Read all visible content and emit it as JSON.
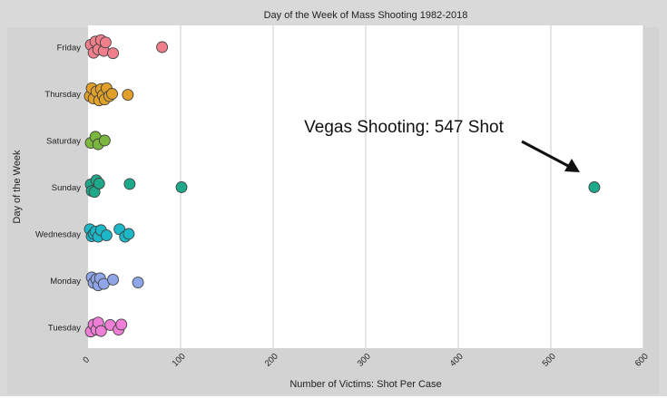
{
  "chart_data": {
    "type": "scatter",
    "title": "Day of the Week of Mass Shooting 1982-2018",
    "xlabel": "Number of Victims: Shot Per Case",
    "ylabel": "Day of the Week",
    "xlim": [
      0,
      600
    ],
    "x_ticks": [
      0,
      100,
      200,
      300,
      400,
      500,
      600
    ],
    "categories": [
      "Friday",
      "Thursday",
      "Saturday",
      "Sunday",
      "Wednesday",
      "Monday",
      "Tuesday"
    ],
    "grid": "vertical",
    "series": [
      {
        "category": "Friday",
        "color": "#f07f8b",
        "points": [
          [
            3,
            -0.05
          ],
          [
            6,
            0.12
          ],
          [
            8,
            -0.12
          ],
          [
            11,
            0.05
          ],
          [
            14,
            -0.15
          ],
          [
            17,
            0.08
          ],
          [
            19,
            -0.1
          ],
          [
            27,
            0.13
          ],
          [
            80,
            0.0
          ]
        ]
      },
      {
        "category": "Thursday",
        "color": "#e0a02a",
        "points": [
          [
            2,
            0.05
          ],
          [
            4,
            -0.12
          ],
          [
            6,
            0.1
          ],
          [
            9,
            -0.05
          ],
          [
            12,
            0.14
          ],
          [
            14,
            -0.1
          ],
          [
            16,
            0.03
          ],
          [
            18,
            0.12
          ],
          [
            20,
            -0.12
          ],
          [
            23,
            0.05
          ],
          [
            26,
            0.0
          ],
          [
            43,
            0.02
          ]
        ]
      },
      {
        "category": "Saturday",
        "color": "#7bb63f",
        "points": [
          [
            3,
            0.05
          ],
          [
            8,
            -0.08
          ],
          [
            11,
            0.08
          ],
          [
            18,
            0.0
          ]
        ]
      },
      {
        "category": "Sunday",
        "color": "#1fa98b",
        "points": [
          [
            3,
            -0.06
          ],
          [
            4,
            0.08
          ],
          [
            7,
            0.1
          ],
          [
            9,
            -0.15
          ],
          [
            12,
            -0.08
          ],
          [
            45,
            -0.07
          ],
          [
            101,
            0.0
          ],
          [
            547,
            0.0
          ]
        ]
      },
      {
        "category": "Wednesday",
        "color": "#1db8c8",
        "points": [
          [
            2,
            -0.1
          ],
          [
            4,
            0.05
          ],
          [
            6,
            0.0
          ],
          [
            8,
            -0.05
          ],
          [
            11,
            0.06
          ],
          [
            14,
            -0.08
          ],
          [
            20,
            0.03
          ],
          [
            34,
            -0.1
          ],
          [
            40,
            0.06
          ],
          [
            44,
            0.0
          ]
        ]
      },
      {
        "category": "Monday",
        "color": "#8ea6e8",
        "points": [
          [
            4,
            -0.07
          ],
          [
            6,
            0.05
          ],
          [
            9,
            -0.03
          ],
          [
            11,
            0.1
          ],
          [
            13,
            -0.05
          ],
          [
            17,
            0.07
          ],
          [
            27,
            -0.02
          ],
          [
            54,
            0.04
          ]
        ]
      },
      {
        "category": "Tuesday",
        "color": "#ee7ed6",
        "points": [
          [
            3,
            0.09
          ],
          [
            6,
            -0.06
          ],
          [
            9,
            0.05
          ],
          [
            11,
            -0.1
          ],
          [
            14,
            0.08
          ],
          [
            24,
            -0.05
          ],
          [
            33,
            0.05
          ],
          [
            36,
            -0.06
          ]
        ]
      }
    ],
    "annotation": {
      "text": "Vegas Shooting: 547 Shot",
      "target": [
        547,
        "Sunday"
      ]
    }
  }
}
